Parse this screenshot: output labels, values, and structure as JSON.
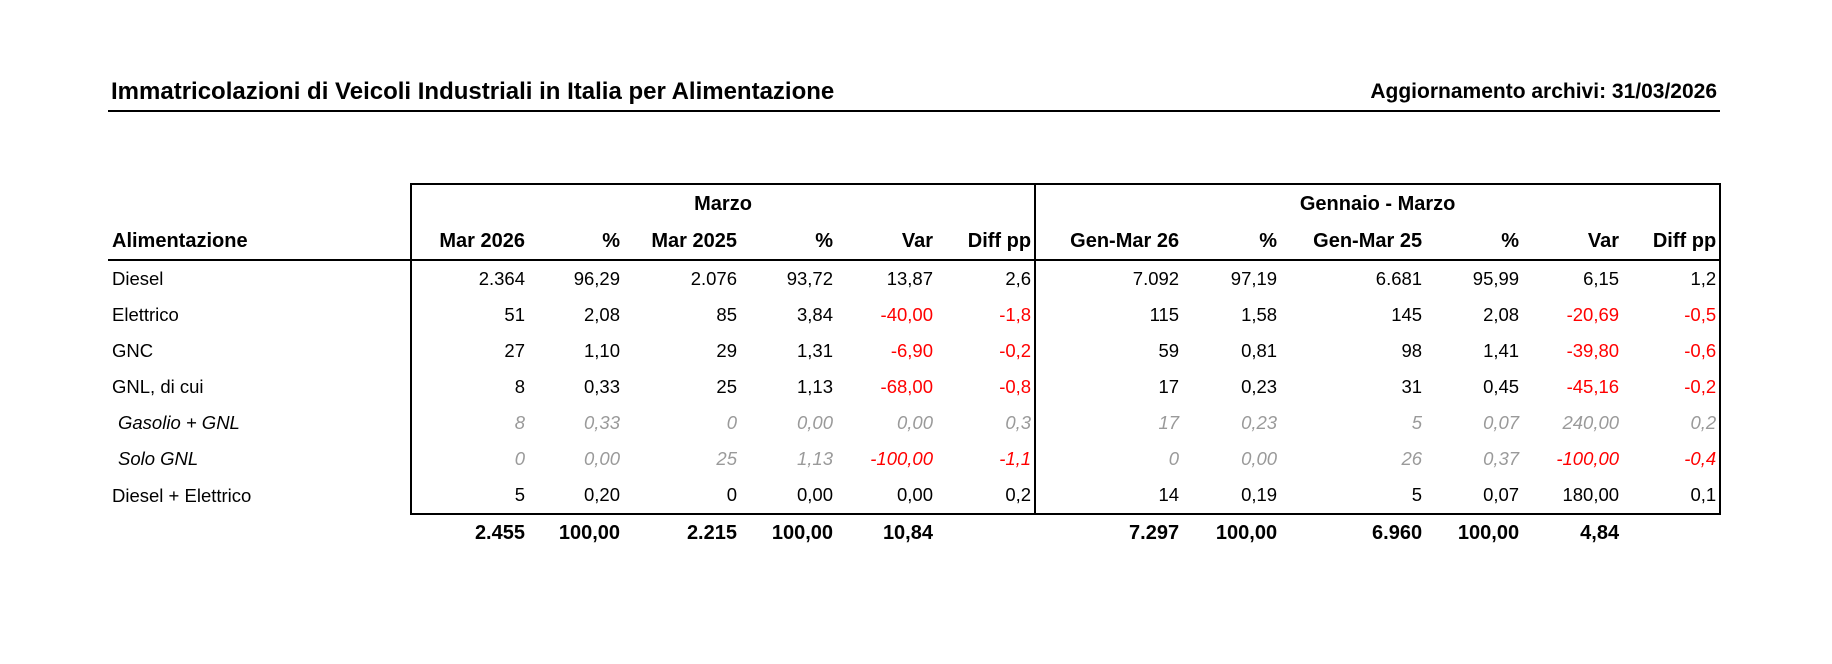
{
  "header": {
    "title": "Immatricolazioni di Veicoli Industriali in Italia per Alimentazione",
    "update": "Aggiornamento archivi: 31/03/2026"
  },
  "table": {
    "group_month": "Marzo",
    "group_ytd": "Gennaio - Marzo",
    "row_header": "Alimentazione",
    "columns": [
      "Mar 2026",
      "%",
      "Mar 2025",
      "%",
      "Var",
      "Diff pp",
      "Gen-Mar 26",
      "%",
      "Gen-Mar 25",
      "%",
      "Var",
      "Diff pp"
    ],
    "rows": [
      {
        "label": "Diesel",
        "sub": false,
        "values": [
          "2.364",
          "96,29",
          "2.076",
          "93,72",
          "13,87",
          "2,6",
          "7.092",
          "97,19",
          "6.681",
          "95,99",
          "6,15",
          "1,2"
        ]
      },
      {
        "label": "Elettrico",
        "sub": false,
        "values": [
          "51",
          "2,08",
          "85",
          "3,84",
          "-40,00",
          "-1,8",
          "115",
          "1,58",
          "145",
          "2,08",
          "-20,69",
          "-0,5"
        ]
      },
      {
        "label": "GNC",
        "sub": false,
        "values": [
          "27",
          "1,10",
          "29",
          "1,31",
          "-6,90",
          "-0,2",
          "59",
          "0,81",
          "98",
          "1,41",
          "-39,80",
          "-0,6"
        ]
      },
      {
        "label": "GNL, di cui",
        "sub": false,
        "values": [
          "8",
          "0,33",
          "25",
          "1,13",
          "-68,00",
          "-0,8",
          "17",
          "0,23",
          "31",
          "0,45",
          "-45,16",
          "-0,2"
        ]
      },
      {
        "label": "Gasolio + GNL",
        "sub": true,
        "values": [
          "8",
          "0,33",
          "0",
          "0,00",
          "0,00",
          "0,3",
          "17",
          "0,23",
          "5",
          "0,07",
          "240,00",
          "0,2"
        ]
      },
      {
        "label": "Solo GNL",
        "sub": true,
        "values": [
          "0",
          "0,00",
          "25",
          "1,13",
          "-100,00",
          "-1,1",
          "0",
          "0,00",
          "26",
          "0,37",
          "-100,00",
          "-0,4"
        ]
      },
      {
        "label": "Diesel + Elettrico",
        "sub": false,
        "values": [
          "5",
          "0,20",
          "0",
          "0,00",
          "0,00",
          "0,2",
          "14",
          "0,19",
          "5",
          "0,07",
          "180,00",
          "0,1"
        ]
      }
    ],
    "total": [
      "2.455",
      "100,00",
      "2.215",
      "100,00",
      "10,84",
      "",
      "7.297",
      "100,00",
      "6.960",
      "100,00",
      "4,84",
      ""
    ]
  },
  "colors": {
    "negative": "#ff0000",
    "subrow": "#9a9a9a"
  }
}
